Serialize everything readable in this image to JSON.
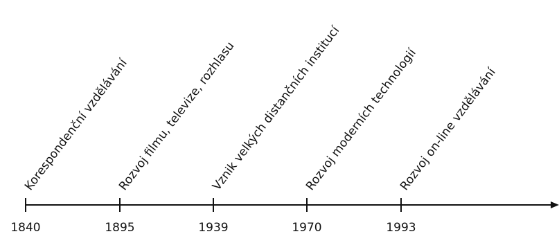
{
  "timeline": {
    "events": [
      {
        "year": "1840",
        "label": "Korespondenční vzdělávání"
      },
      {
        "year": "1895",
        "label": "Rozvoj filmu, televize, rozhlasu"
      },
      {
        "year": "1939",
        "label": "Vznik velkých distančních institucí"
      },
      {
        "year": "1970",
        "label": "Rozvoj moderních technologií"
      },
      {
        "year": "1993",
        "label": "Rozvoj on-line vzdělávání"
      }
    ]
  }
}
